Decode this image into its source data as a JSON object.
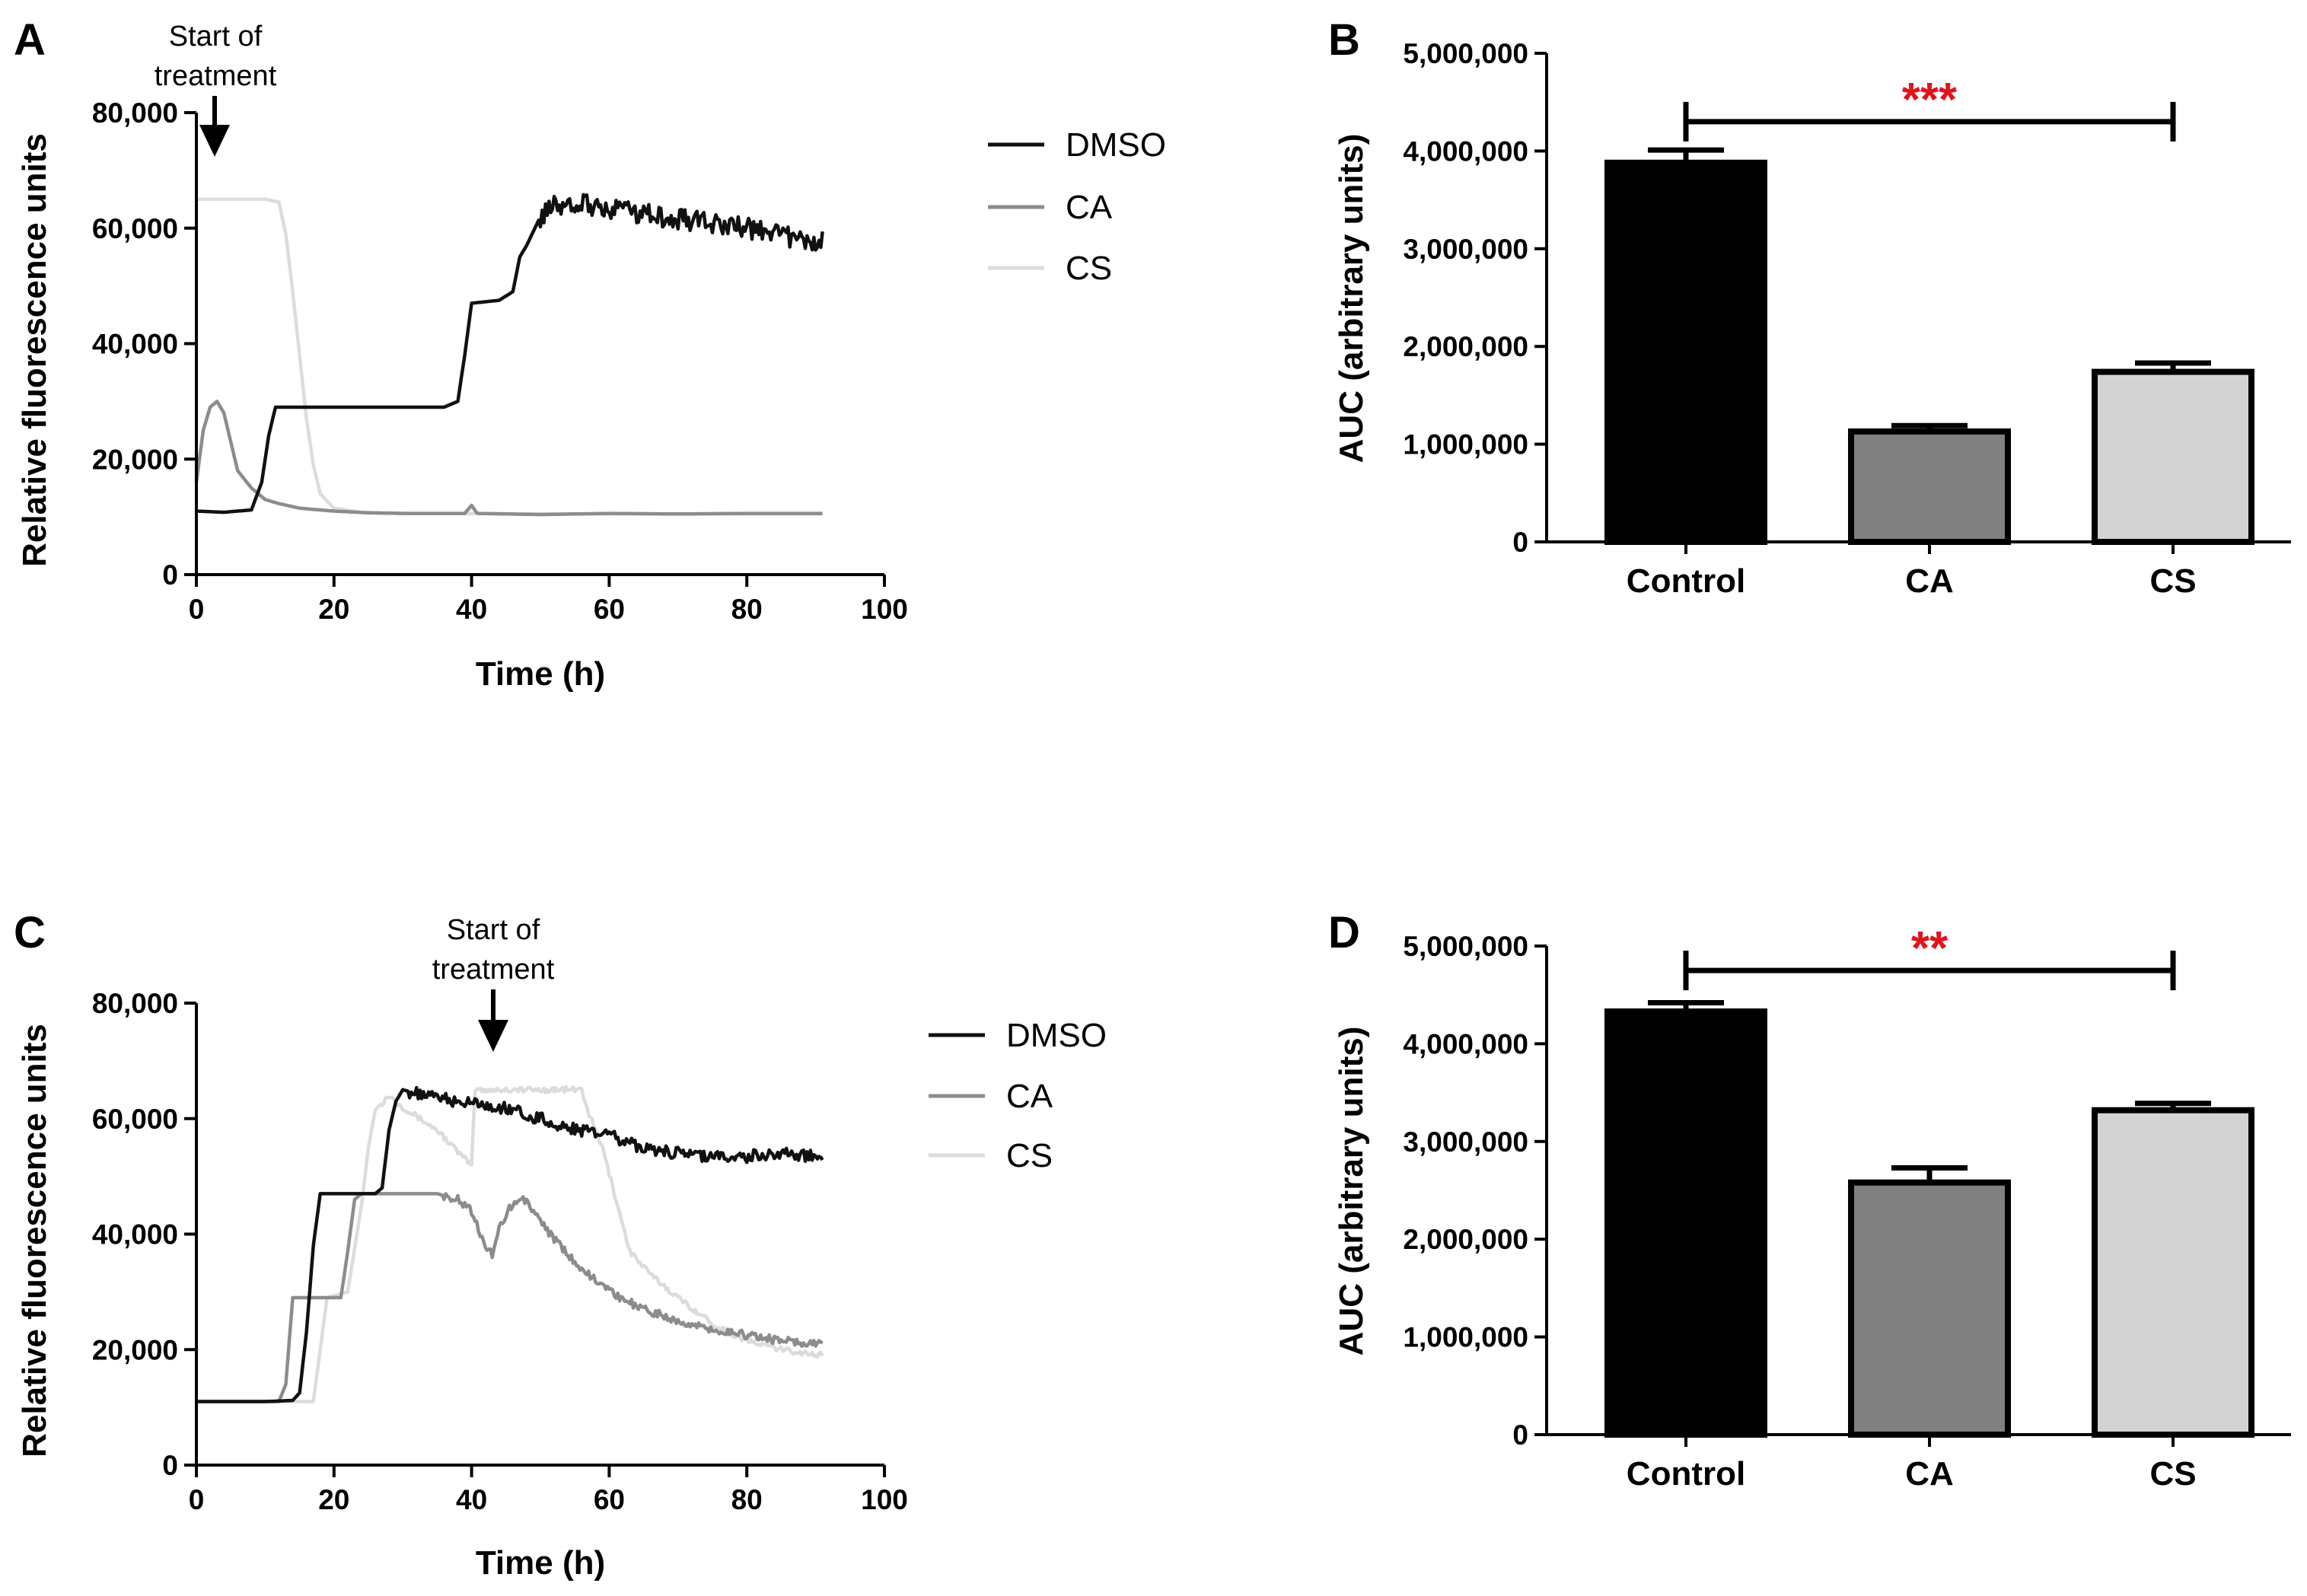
{
  "colors": {
    "DMSO": "#111111",
    "CA": "#8c8c8c",
    "CS": "#dcdcdc",
    "sig": "#e0141e",
    "control_bar": "#000000",
    "ca_bar": "#808080",
    "cs_bar": "#d3d3d3"
  },
  "chart_data": [
    {
      "panel": "A",
      "type": "line",
      "xlabel": "Time (h)",
      "ylabel": "Relative fluorescence units",
      "xlim": [
        0,
        100
      ],
      "ylim": [
        0,
        80000
      ],
      "xticks": [
        "0",
        "20",
        "40",
        "60",
        "80",
        "100"
      ],
      "yticks": [
        "0",
        "20,000",
        "40,000",
        "60,000",
        "80,000"
      ],
      "annotation": {
        "line1": "Start of",
        "line2": "treatment",
        "x": 2.5
      },
      "legend": [
        "DMSO",
        "CA",
        "CS"
      ],
      "series": [
        {
          "name": "DMSO",
          "points": [
            [
              0,
              11000
            ],
            [
              4,
              10800
            ],
            [
              8,
              11200
            ],
            [
              9.5,
              16000
            ],
            [
              10.5,
              24000
            ],
            [
              11.5,
              29000
            ],
            [
              20,
              29000
            ],
            [
              30,
              29000
            ],
            [
              36,
              29000
            ],
            [
              38,
              30000
            ],
            [
              39,
              38000
            ],
            [
              40,
              47000
            ],
            [
              44,
              47500
            ],
            [
              46,
              49000
            ],
            [
              47,
              55000
            ],
            [
              48,
              57000
            ],
            [
              50,
              62000
            ],
            [
              52,
              64000
            ],
            [
              55,
              64500
            ],
            [
              60,
              63500
            ],
            [
              65,
              62500
            ],
            [
              70,
              61500
            ],
            [
              75,
              61000
            ],
            [
              80,
              60000
            ],
            [
              85,
              59000
            ],
            [
              88,
              57500
            ],
            [
              90,
              57000
            ],
            [
              91,
              58500
            ]
          ],
          "noise": 1800,
          "noise_from": 50
        },
        {
          "name": "CA",
          "points": [
            [
              0,
              16000
            ],
            [
              1,
              25000
            ],
            [
              2,
              29000
            ],
            [
              3,
              30000
            ],
            [
              4,
              28000
            ],
            [
              5,
              23000
            ],
            [
              6,
              18000
            ],
            [
              8,
              15000
            ],
            [
              10,
              13000
            ],
            [
              12,
              12300
            ],
            [
              15,
              11500
            ],
            [
              20,
              11000
            ],
            [
              25,
              10700
            ],
            [
              30,
              10600
            ],
            [
              39,
              10600
            ],
            [
              40,
              12000
            ],
            [
              40.8,
              10600
            ],
            [
              50,
              10400
            ],
            [
              60,
              10600
            ],
            [
              70,
              10500
            ],
            [
              80,
              10600
            ],
            [
              91,
              10600
            ]
          ]
        },
        {
          "name": "CS",
          "points": [
            [
              0,
              65000
            ],
            [
              10,
              65000
            ],
            [
              12,
              64500
            ],
            [
              13,
              59000
            ],
            [
              14,
              49000
            ],
            [
              15,
              38000
            ],
            [
              16,
              27000
            ],
            [
              17,
              19000
            ],
            [
              18,
              14000
            ],
            [
              20,
              11500
            ],
            [
              24,
              10800
            ],
            [
              30,
              10600
            ],
            [
              60,
              10500
            ],
            [
              91,
              10500
            ]
          ]
        }
      ]
    },
    {
      "panel": "B",
      "type": "bar",
      "ylabel": "AUC (arbitrary units)",
      "ylim": [
        0,
        5000000
      ],
      "yticks": [
        "0",
        "1,000,000",
        "2,000,000",
        "3,000,000",
        "4,000,000",
        "5,000,000"
      ],
      "categories": [
        "Control",
        "CA",
        "CS"
      ],
      "values": [
        3880000,
        1130000,
        1740000
      ],
      "errors": [
        130000,
        60000,
        90000
      ],
      "significance": {
        "label": "***",
        "from": "Control",
        "to": "CS",
        "y": 4300000
      }
    },
    {
      "panel": "C",
      "type": "line",
      "xlabel": "Time (h)",
      "ylabel": "Relative fluorescence units",
      "xlim": [
        0,
        100
      ],
      "ylim": [
        0,
        80000
      ],
      "xticks": [
        "0",
        "20",
        "40",
        "60",
        "80",
        "100"
      ],
      "yticks": [
        "0",
        "20,000",
        "40,000",
        "60,000",
        "80,000"
      ],
      "annotation": {
        "line1": "Start of",
        "line2": "treatment",
        "x": 43
      },
      "legend": [
        "DMSO",
        "CA",
        "CS"
      ],
      "series": [
        {
          "name": "DMSO",
          "points": [
            [
              0,
              11000
            ],
            [
              10,
              11000
            ],
            [
              14,
              11200
            ],
            [
              15,
              12500
            ],
            [
              16,
              23000
            ],
            [
              17,
              38000
            ],
            [
              18,
              47000
            ],
            [
              26,
              47000
            ],
            [
              27,
              48000
            ],
            [
              28,
              58000
            ],
            [
              29,
              63000
            ],
            [
              30,
              65000
            ],
            [
              33,
              64000
            ],
            [
              38,
              63000
            ],
            [
              42,
              62500
            ],
            [
              46,
              61500
            ],
            [
              50,
              60000
            ],
            [
              55,
              58000
            ],
            [
              60,
              57000
            ],
            [
              65,
              55000
            ],
            [
              70,
              54000
            ],
            [
              75,
              53500
            ],
            [
              80,
              53500
            ],
            [
              85,
              54000
            ],
            [
              91,
              53500
            ]
          ],
          "noise": 1100,
          "noise_from": 31
        },
        {
          "name": "CA",
          "points": [
            [
              0,
              11000
            ],
            [
              12,
              11000
            ],
            [
              13,
              14000
            ],
            [
              14,
              29000
            ],
            [
              21,
              29000
            ],
            [
              22,
              37000
            ],
            [
              23,
              46000
            ],
            [
              24,
              47000
            ],
            [
              35,
              47000
            ],
            [
              38,
              46000
            ],
            [
              40,
              44000
            ],
            [
              42,
              38000
            ],
            [
              43,
              36500
            ],
            [
              44,
              41000
            ],
            [
              46,
              45500
            ],
            [
              48,
              46000
            ],
            [
              50,
              42000
            ],
            [
              55,
              35000
            ],
            [
              60,
              30000
            ],
            [
              65,
              27000
            ],
            [
              70,
              25000
            ],
            [
              75,
              23500
            ],
            [
              80,
              22500
            ],
            [
              85,
              21500
            ],
            [
              91,
              21000
            ]
          ],
          "noise": 700,
          "noise_from": 36
        },
        {
          "name": "CS",
          "points": [
            [
              0,
              11000
            ],
            [
              17,
              11000
            ],
            [
              18,
              20000
            ],
            [
              19,
              29000
            ],
            [
              22,
              30000
            ],
            [
              24,
              45000
            ],
            [
              25,
              55000
            ],
            [
              26,
              61500
            ],
            [
              28,
              64000
            ],
            [
              30,
              62000
            ],
            [
              35,
              58000
            ],
            [
              39,
              53000
            ],
            [
              40,
              52000
            ],
            [
              40.5,
              65000
            ],
            [
              50,
              65000
            ],
            [
              56,
              65000
            ],
            [
              57,
              61000
            ],
            [
              59,
              55000
            ],
            [
              61,
              46000
            ],
            [
              63,
              37000
            ],
            [
              66,
              33000
            ],
            [
              70,
              29000
            ],
            [
              75,
              24500
            ],
            [
              80,
              21500
            ],
            [
              85,
              20000
            ],
            [
              91,
              19000
            ]
          ],
          "noise": 500,
          "noise_from": 27
        }
      ]
    },
    {
      "panel": "D",
      "type": "bar",
      "ylabel": "AUC (arbitrary units)",
      "ylim": [
        0,
        5000000
      ],
      "yticks": [
        "0",
        "1,000,000",
        "2,000,000",
        "3,000,000",
        "4,000,000",
        "5,000,000"
      ],
      "categories": [
        "Control",
        "CA",
        "CS"
      ],
      "values": [
        4330000,
        2580000,
        3320000
      ],
      "errors": [
        90000,
        150000,
        70000
      ],
      "significance": {
        "label": "**",
        "from": "Control",
        "to": "CS",
        "y": 4750000
      }
    }
  ]
}
